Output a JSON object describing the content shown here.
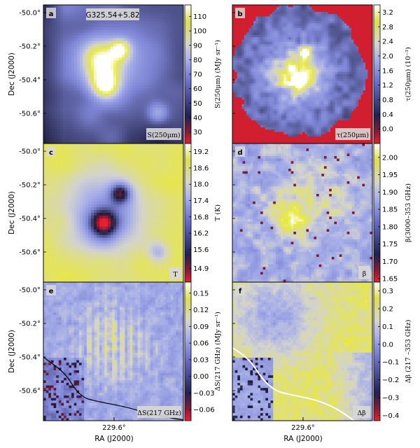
{
  "figure": {
    "title_label": "G325.54+5.82",
    "x_axis_label": "RA (J2000)",
    "y_axis_label": "Dec (J2000)",
    "x_tick": "229.6°",
    "y_ticks": [
      "-50.0°",
      "-50.2°",
      "-50.4°",
      "-50.6°"
    ]
  },
  "chart_data": [
    {
      "type": "heatmap",
      "panel": "a",
      "corner_label": "S(250μm)",
      "colorbar_label": "S(250μm) (MJy sr⁻¹)",
      "colorbar_ticks": [
        "110",
        "100",
        "90",
        "80",
        "70",
        "60",
        "50",
        "40",
        "30"
      ],
      "colorbar_values": [
        110,
        100,
        90,
        80,
        70,
        60,
        50,
        40,
        30
      ],
      "vmin": 22,
      "vmax": 118,
      "colormap": "red-blue-yellow",
      "features": [
        {
          "ra_frac": 0.42,
          "dec_frac": 0.57,
          "peak": 118,
          "width": 0.1
        },
        {
          "ra_frac": 0.52,
          "dec_frac": 0.27,
          "peak": 95,
          "width": 0.09
        },
        {
          "ra_frac": 0.82,
          "dec_frac": 0.79,
          "peak": 70,
          "width": 0.08
        }
      ]
    },
    {
      "type": "heatmap",
      "panel": "b",
      "corner_label": "τ(250μm)",
      "colorbar_label": "τ(250μm) (10⁻³)",
      "colorbar_ticks": [
        "3.2",
        "2.8",
        "2.4",
        "2.0",
        "1.6",
        "1.2",
        "0.8",
        "0.4",
        "0.0"
      ],
      "colorbar_values": [
        3.2,
        2.8,
        2.4,
        2.0,
        1.6,
        1.2,
        0.8,
        0.4,
        0.0
      ],
      "vmin": -0.4,
      "vmax": 3.4,
      "colormap": "red-blue-yellow",
      "masked": true
    },
    {
      "type": "heatmap",
      "panel": "c",
      "corner_label": "T",
      "colorbar_label": "T (K)",
      "colorbar_ticks": [
        "19.2",
        "18.6",
        "18.0",
        "17.4",
        "16.8",
        "16.2",
        "15.6",
        "14.9"
      ],
      "colorbar_values": [
        19.2,
        18.6,
        18.0,
        17.4,
        16.8,
        16.2,
        15.6,
        14.9
      ],
      "vmin": 14.4,
      "vmax": 19.5,
      "colormap": "red-blue-yellow"
    },
    {
      "type": "heatmap",
      "panel": "d",
      "corner_label": "β",
      "colorbar_label": "β(3000–353 GHz)",
      "colorbar_ticks": [
        "2.00",
        "1.95",
        "1.90",
        "1.85",
        "1.80",
        "1.75",
        "1.70",
        "1.65"
      ],
      "colorbar_values": [
        2.0,
        1.95,
        1.9,
        1.85,
        1.8,
        1.75,
        1.7,
        1.65
      ],
      "vmin": 1.64,
      "vmax": 2.04,
      "colormap": "red-blue-yellow"
    },
    {
      "type": "heatmap",
      "panel": "e",
      "corner_label": "ΔS(217 GHz)",
      "colorbar_label": "ΔS(217 GHz) (MJy sr⁻¹)",
      "colorbar_ticks": [
        "0.15",
        "0.12",
        "0.09",
        "0.06",
        "0.03",
        "0.00",
        "−0.03",
        "−0.06"
      ],
      "colorbar_values": [
        0.15,
        0.12,
        0.09,
        0.06,
        0.03,
        0.0,
        -0.03,
        -0.06
      ],
      "vmin": -0.08,
      "vmax": 0.17,
      "colormap": "red-blue-yellow",
      "contour_color": "#000000"
    },
    {
      "type": "heatmap",
      "panel": "f",
      "corner_label": "Δβ",
      "colorbar_label": "Δβ (217 –353 GHz)",
      "colorbar_ticks": [
        "0.3",
        "0.2",
        "0.1",
        "0.0",
        "−0.1",
        "−0.2",
        "−0.3",
        "−0.4"
      ],
      "colorbar_values": [
        0.3,
        0.2,
        0.1,
        0.0,
        -0.1,
        -0.2,
        -0.3,
        -0.4
      ],
      "vmin": -0.43,
      "vmax": 0.35,
      "colormap": "red-blue-yellow",
      "contour_color": "#ffffff"
    }
  ],
  "colors": {
    "cmap_low": "#e8202c",
    "cmap_dark": "#1a1a3a",
    "cmap_mid": "#7f86d6",
    "cmap_pale": "#d3d3cf",
    "cmap_high": "#e8e840",
    "cmap_top": "#ffffff"
  }
}
